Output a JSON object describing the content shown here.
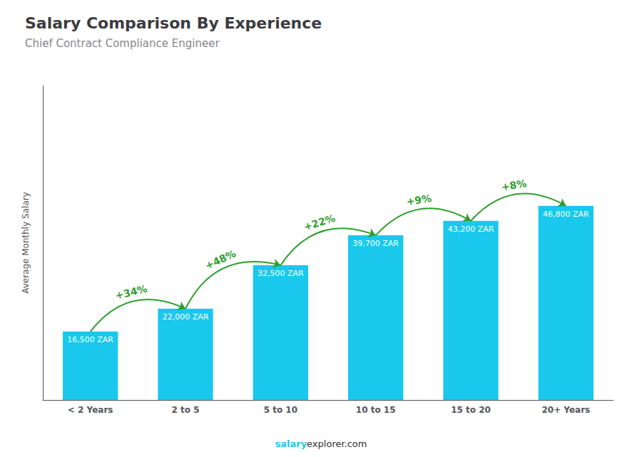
{
  "chart_data": {
    "type": "bar",
    "title": "Salary Comparison By Experience",
    "subtitle": "Chief Contract Compliance Engineer",
    "categories": [
      "< 2 Years",
      "2 to 5",
      "5 to 10",
      "10 to 15",
      "15 to 20",
      "20+ Years"
    ],
    "values": [
      16500,
      22000,
      32500,
      39700,
      43200,
      46800
    ],
    "value_labels": [
      "16,500 ZAR",
      "22,000 ZAR",
      "32,500 ZAR",
      "39,700 ZAR",
      "43,200 ZAR",
      "46,800 ZAR"
    ],
    "data_labels": true,
    "color": "#1AC8ED",
    "ylabel": "Average Monthly Salary",
    "ylim": [
      0,
      75816
    ],
    "tick_labels": "x",
    "grid": false,
    "annotations": [
      "+34%",
      "+48%",
      "+22%",
      "+9%",
      "+8%"
    ],
    "footer": [
      "salary",
      "explorer.com"
    ]
  }
}
